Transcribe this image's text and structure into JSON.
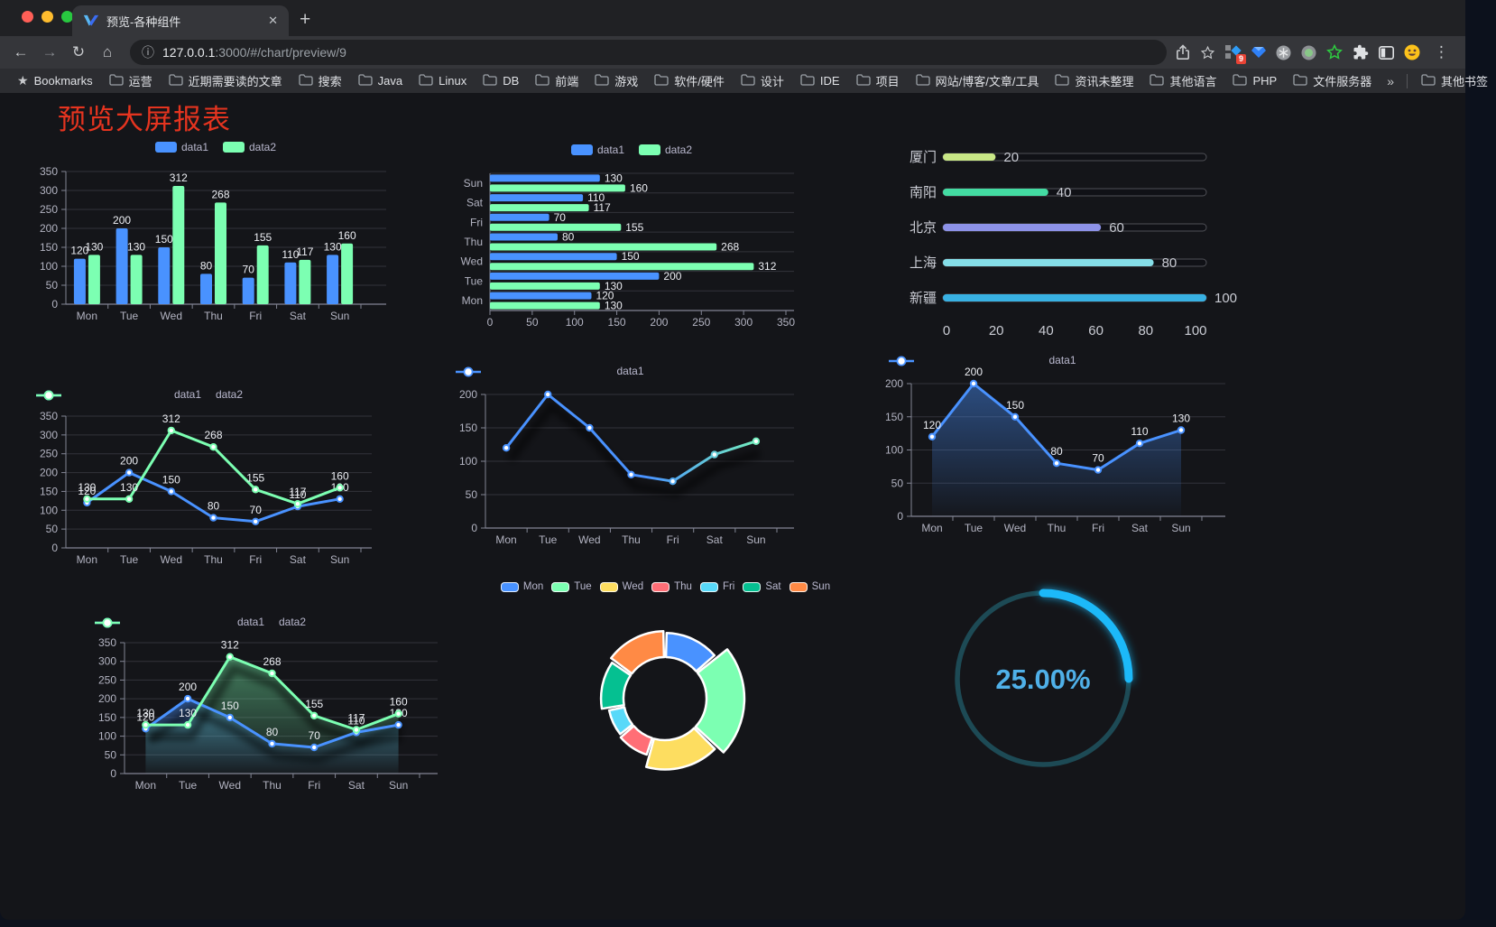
{
  "browser": {
    "window_buttons": [
      "close",
      "minimize",
      "zoom"
    ],
    "tab_title": "预览-各种组件",
    "tab_close": "✕",
    "new_tab": "+",
    "url_host": "127.0.0.1",
    "url_path": ":3000/#/chart/preview/9",
    "extension_badge": "9",
    "toolbar_icon_names": [
      "back-icon",
      "forward-icon",
      "reload-icon",
      "home-icon",
      "info-icon",
      "share-icon",
      "bookmark-star-icon",
      "ext-proxy-icon",
      "ext-gem-icon",
      "ext-wheel-icon",
      "ext-dot-icon",
      "ext-green-star-icon",
      "ext-puzzle-icon",
      "ext-sidebar-icon",
      "ext-emoji-icon",
      "menu-icon"
    ],
    "bookmarks_root": "Bookmarks",
    "bookmarks": [
      "运营",
      "近期需要读的文章",
      "搜索",
      "Java",
      "Linux",
      "DB",
      "前端",
      "游戏",
      "软件/硬件",
      "设计",
      "IDE",
      "项目",
      "网站/博客/文章/工具",
      "资讯未整理",
      "其他语言",
      "PHP",
      "文件服务器"
    ],
    "bookmarks_overflow": "»",
    "other_bookmarks": "其他书签"
  },
  "page": {
    "title": "预览大屏报表",
    "title_color": "#e5341f"
  },
  "chart_data": [
    {
      "id": "bar-vertical",
      "type": "bar",
      "categories": [
        "Mon",
        "Tue",
        "Wed",
        "Thu",
        "Fri",
        "Sat",
        "Sun"
      ],
      "series": [
        {
          "name": "data1",
          "color": "#4992ff",
          "values": [
            120,
            200,
            150,
            80,
            70,
            110,
            130
          ]
        },
        {
          "name": "data2",
          "color": "#7cffb2",
          "values": [
            130,
            130,
            312,
            268,
            155,
            117,
            160
          ]
        }
      ],
      "ylim": [
        0,
        350
      ],
      "yticks": [
        0,
        50,
        100,
        150,
        200,
        250,
        300,
        350
      ],
      "legend_position": "top",
      "grid": true
    },
    {
      "id": "bar-horizontal",
      "type": "bar-horizontal",
      "categories": [
        "Mon",
        "Tue",
        "Wed",
        "Thu",
        "Fri",
        "Sat",
        "Sun"
      ],
      "display_order_top_to_bottom": [
        "Sun",
        "Sat",
        "Fri",
        "Thu",
        "Wed",
        "Tue",
        "Mon"
      ],
      "series": [
        {
          "name": "data1",
          "color": "#4992ff",
          "values": [
            120,
            200,
            150,
            80,
            70,
            110,
            130
          ]
        },
        {
          "name": "data2",
          "color": "#7cffb2",
          "values": [
            130,
            130,
            312,
            268,
            155,
            117,
            160
          ]
        }
      ],
      "xlim": [
        0,
        350
      ],
      "xticks": [
        0,
        50,
        100,
        150,
        200,
        250,
        300,
        350
      ],
      "legend_position": "top",
      "grid": true
    },
    {
      "id": "progress",
      "type": "bar",
      "items": [
        {
          "label": "厦门",
          "value": 20,
          "color": "#c8e786"
        },
        {
          "label": "南阳",
          "value": 40,
          "color": "#43dba2"
        },
        {
          "label": "北京",
          "value": 60,
          "color": "#8d92e8"
        },
        {
          "label": "上海",
          "value": 80,
          "color": "#85dee8"
        },
        {
          "label": "新疆",
          "value": 100,
          "color": "#38b1e3"
        }
      ],
      "xlim": [
        0,
        100
      ],
      "xticks": [
        0,
        20,
        40,
        60,
        80,
        100
      ]
    },
    {
      "id": "line-two",
      "type": "line",
      "categories": [
        "Mon",
        "Tue",
        "Wed",
        "Thu",
        "Fri",
        "Sat",
        "Sun"
      ],
      "series": [
        {
          "name": "data1",
          "color": "#4992ff",
          "values": [
            120,
            200,
            150,
            80,
            70,
            110,
            130
          ]
        },
        {
          "name": "data2",
          "color": "#7cffb2",
          "values": [
            130,
            130,
            312,
            268,
            155,
            117,
            160
          ]
        }
      ],
      "ylim": [
        0,
        350
      ],
      "yticks": [
        0,
        50,
        100,
        150,
        200,
        250,
        300,
        350
      ],
      "legend_position": "top"
    },
    {
      "id": "line-single",
      "type": "line",
      "categories": [
        "Mon",
        "Tue",
        "Wed",
        "Thu",
        "Fri",
        "Sat",
        "Sun"
      ],
      "series": [
        {
          "name": "data1",
          "color_start": "#4992ff",
          "color_end": "#7cffb2",
          "values": [
            120,
            200,
            150,
            80,
            70,
            110,
            130
          ]
        }
      ],
      "ylim": [
        0,
        200
      ],
      "yticks": [
        0,
        50,
        100,
        150,
        200
      ],
      "legend_position": "top"
    },
    {
      "id": "area-single",
      "type": "area",
      "categories": [
        "Mon",
        "Tue",
        "Wed",
        "Thu",
        "Fri",
        "Sat",
        "Sun"
      ],
      "series": [
        {
          "name": "data1",
          "color": "#4992ff",
          "values": [
            120,
            200,
            150,
            80,
            70,
            110,
            130
          ]
        }
      ],
      "ylim": [
        0,
        200
      ],
      "yticks": [
        0,
        50,
        100,
        150,
        200
      ],
      "legend_position": "top"
    },
    {
      "id": "area-two",
      "type": "area",
      "categories": [
        "Mon",
        "Tue",
        "Wed",
        "Thu",
        "Fri",
        "Sat",
        "Sun"
      ],
      "series": [
        {
          "name": "data1",
          "color": "#4992ff",
          "values": [
            120,
            200,
            150,
            80,
            70,
            110,
            130
          ]
        },
        {
          "name": "data2",
          "color": "#7cffb2",
          "values": [
            130,
            130,
            312,
            268,
            155,
            117,
            160
          ]
        }
      ],
      "ylim": [
        0,
        350
      ],
      "yticks": [
        0,
        50,
        100,
        150,
        200,
        250,
        300,
        350
      ],
      "legend_position": "top"
    },
    {
      "id": "donut",
      "type": "pie",
      "rose": true,
      "categories": [
        "Mon",
        "Tue",
        "Wed",
        "Thu",
        "Fri",
        "Sat",
        "Sun"
      ],
      "values": [
        120,
        200,
        150,
        80,
        70,
        110,
        130
      ],
      "colors": [
        "#4992ff",
        "#7cffb2",
        "#fddd60",
        "#ff6e76",
        "#58d9f9",
        "#05c091",
        "#ff8a45"
      ],
      "legend_position": "top"
    },
    {
      "id": "gauge",
      "type": "gauge",
      "value": 25,
      "label": "25.00%",
      "color": "#1bb9f9",
      "track": "#1d4a55",
      "text_color": "#4fb0e8"
    }
  ]
}
